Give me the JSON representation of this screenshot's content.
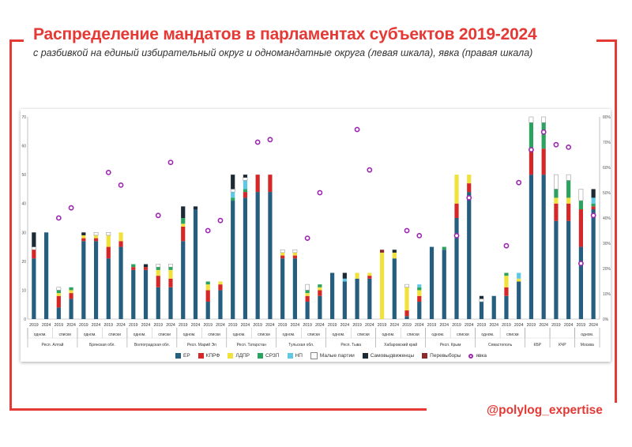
{
  "title": "Распределение мандатов в парламентах субъектов 2019-2024",
  "subtitle": "с разбивкой на единый избирательный округ и одномандатные округа (левая шкала), явка (правая шкала)",
  "handle": "@polylog_expertise",
  "colors": {
    "accent": "#e53935",
    "ЕР": "#255e7e",
    "КПРФ": "#d62728",
    "ЛДПР": "#f0e13c",
    "СРЗП": "#2ca25f",
    "НП": "#5ec8e5",
    "Малые партии": "#ffffff",
    "Самовыдвиженцы": "#1b2a35",
    "Перевыборы": "#8b2a2a",
    "Явка": "#9c27b0"
  },
  "chart_data": {
    "type": "bar",
    "stacked": true,
    "ylim_left": [
      0,
      70
    ],
    "yticks_left": [
      "0",
      "10",
      "20",
      "30",
      "40",
      "50",
      "60",
      "70"
    ],
    "ylim_right": [
      0,
      80
    ],
    "yticks_right": [
      "0%",
      "10%",
      "20%",
      "30%",
      "40%",
      "50%",
      "60%",
      "70%",
      "80%"
    ],
    "series": [
      {
        "name": "ЕР"
      },
      {
        "name": "КПРФ"
      },
      {
        "name": "ЛДПР"
      },
      {
        "name": "СРЗП"
      },
      {
        "name": "НП"
      },
      {
        "name": "Малые партии"
      },
      {
        "name": "Самовыдвиженцы"
      },
      {
        "name": "Перевыборы"
      }
    ],
    "turnout_label": "явка",
    "regions": [
      {
        "name": "Респ. Алтай",
        "groups": [
          {
            "label": "одном.",
            "bars": [
              {
                "year": "2019",
                "stack": [
                  21,
                  3,
                  0,
                  0,
                  0,
                  1,
                  5,
                  0
                ],
                "turnout": null
              },
              {
                "year": "2024",
                "stack": [
                  30,
                  0,
                  0,
                  0,
                  0,
                  0,
                  0,
                  0
                ],
                "turnout": null
              }
            ]
          },
          {
            "label": "списки",
            "bars": [
              {
                "year": "2019",
                "stack": [
                  4,
                  4,
                  1,
                  1,
                  0,
                  1,
                  0,
                  0
                ],
                "turnout": 40
              },
              {
                "year": "2024",
                "stack": [
                  7,
                  2,
                  1,
                  1,
                  0,
                  0,
                  0,
                  0
                ],
                "turnout": 44
              }
            ]
          }
        ]
      },
      {
        "name": "Брянская обл.",
        "groups": [
          {
            "label": "одном.",
            "bars": [
              {
                "year": "2019",
                "stack": [
                  27,
                  1,
                  1,
                  0,
                  0,
                  0,
                  1,
                  0
                ],
                "turnout": null
              },
              {
                "year": "2024",
                "stack": [
                  27,
                  1,
                  1,
                  0,
                  0,
                  1,
                  0,
                  0
                ],
                "turnout": null
              }
            ]
          },
          {
            "label": "списки",
            "bars": [
              {
                "year": "2019",
                "stack": [
                  21,
                  4,
                  4,
                  0,
                  0,
                  1,
                  0,
                  0
                ],
                "turnout": 58
              },
              {
                "year": "2024",
                "stack": [
                  25,
                  2,
                  3,
                  0,
                  0,
                  0,
                  0,
                  0
                ],
                "turnout": 53
              }
            ]
          }
        ]
      },
      {
        "name": "Волгоградская обл.",
        "groups": [
          {
            "label": "одном.",
            "bars": [
              {
                "year": "2019",
                "stack": [
                  17,
                  1,
                  0,
                  1,
                  0,
                  0,
                  0,
                  0
                ],
                "turnout": null
              },
              {
                "year": "2024",
                "stack": [
                  17,
                  1,
                  0,
                  0,
                  0,
                  0,
                  1,
                  0
                ],
                "turnout": null
              }
            ]
          },
          {
            "label": "списки",
            "bars": [
              {
                "year": "2019",
                "stack": [
                  11,
                  4,
                  2,
                  1,
                  0,
                  1,
                  0,
                  0
                ],
                "turnout": 41
              },
              {
                "year": "2024",
                "stack": [
                  11,
                  3,
                  3,
                  1,
                  0,
                  1,
                  0,
                  0
                ],
                "turnout": 62
              }
            ]
          }
        ]
      },
      {
        "name": "Респ. Марий Эл",
        "groups": [
          {
            "label": "одном.",
            "bars": [
              {
                "year": "2019",
                "stack": [
                  27,
                  5,
                  1,
                  2,
                  0,
                  0,
                  4,
                  0
                ],
                "turnout": null
              },
              {
                "year": "2024",
                "stack": [
                  38,
                  0,
                  0,
                  0,
                  0,
                  0,
                  1,
                  0
                ],
                "turnout": null
              }
            ]
          },
          {
            "label": "списки",
            "bars": [
              {
                "year": "2019",
                "stack": [
                  6,
                  4,
                  2,
                  1,
                  0,
                  0,
                  0,
                  0
                ],
                "turnout": 35
              },
              {
                "year": "2024",
                "stack": [
                  10,
                  2,
                  1,
                  0,
                  0,
                  0,
                  0,
                  0
                ],
                "turnout": 39
              }
            ]
          }
        ]
      },
      {
        "name": "Респ. Татарстан",
        "groups": [
          {
            "label": "одном.",
            "bars": [
              {
                "year": "2019",
                "stack": [
                  41,
                  0,
                  0,
                  1,
                  2,
                  1,
                  5,
                  0
                ],
                "turnout": null
              },
              {
                "year": "2024",
                "stack": [
                  42,
                  2,
                  0,
                  1,
                  3,
                  1,
                  1,
                  0
                ],
                "turnout": null
              }
            ]
          },
          {
            "label": "списки",
            "bars": [
              {
                "year": "2019",
                "stack": [
                  44,
                  6,
                  0,
                  0,
                  0,
                  0,
                  0,
                  0
                ],
                "turnout": 70
              },
              {
                "year": "2024",
                "stack": [
                  44,
                  6,
                  0,
                  0,
                  0,
                  0,
                  0,
                  0
                ],
                "turnout": 71
              }
            ]
          }
        ]
      },
      {
        "name": "Тульская обл.",
        "groups": [
          {
            "label": "одном.",
            "bars": [
              {
                "year": "2019",
                "stack": [
                  21,
                  1,
                  1,
                  0,
                  0,
                  1,
                  0,
                  0
                ],
                "turnout": null
              },
              {
                "year": "2024",
                "stack": [
                  21,
                  1,
                  1,
                  0,
                  0,
                  1,
                  0,
                  0
                ],
                "turnout": null
              }
            ]
          },
          {
            "label": "списки",
            "bars": [
              {
                "year": "2019",
                "stack": [
                  6,
                  2,
                  1,
                  1,
                  0,
                  2,
                  0,
                  0
                ],
                "turnout": 32
              },
              {
                "year": "2024",
                "stack": [
                  8,
                  2,
                  1,
                  1,
                  0,
                  0,
                  0,
                  0
                ],
                "turnout": 50
              }
            ]
          }
        ]
      },
      {
        "name": "Респ. Тыва",
        "groups": [
          {
            "label": "одном.",
            "bars": [
              {
                "year": "2019",
                "stack": [
                  16,
                  0,
                  0,
                  0,
                  0,
                  0,
                  0,
                  0
                ],
                "turnout": null
              },
              {
                "year": "2024",
                "stack": [
                  13,
                  0,
                  0,
                  0,
                  1,
                  0,
                  2,
                  0
                ],
                "turnout": null
              }
            ]
          },
          {
            "label": "списки",
            "bars": [
              {
                "year": "2019",
                "stack": [
                  14,
                  0,
                  2,
                  0,
                  0,
                  0,
                  0,
                  0
                ],
                "turnout": 75
              },
              {
                "year": "2024",
                "stack": [
                  14,
                  1,
                  1,
                  0,
                  0,
                  0,
                  0,
                  0
                ],
                "turnout": 59
              }
            ]
          }
        ]
      },
      {
        "name": "Хабаровский край",
        "groups": [
          {
            "label": "одном.",
            "bars": [
              {
                "year": "2019",
                "stack": [
                  0,
                  0,
                  23,
                  0,
                  0,
                  0,
                  0,
                  1
                ],
                "turnout": null
              },
              {
                "year": "2024",
                "stack": [
                  21,
                  0,
                  2,
                  0,
                  0,
                  0,
                  1,
                  0
                ],
                "turnout": null
              }
            ]
          },
          {
            "label": "списки",
            "bars": [
              {
                "year": "2019",
                "stack": [
                  1,
                  2,
                  8,
                  0,
                  0,
                  1,
                  0,
                  0
                ],
                "turnout": 35
              },
              {
                "year": "2024",
                "stack": [
                  6,
                  2,
                  2,
                  1,
                  1,
                  0,
                  0,
                  0
                ],
                "turnout": 33
              }
            ]
          }
        ]
      },
      {
        "name": "Респ. Крым",
        "groups": [
          {
            "label": "одном.",
            "bars": [
              {
                "year": "2019",
                "stack": [
                  25,
                  0,
                  0,
                  0,
                  0,
                  0,
                  0,
                  0
                ],
                "turnout": null
              },
              {
                "year": "2024",
                "stack": [
                  24,
                  0,
                  0,
                  1,
                  0,
                  0,
                  0,
                  0
                ],
                "turnout": null
              }
            ]
          },
          {
            "label": "списки",
            "bars": [
              {
                "year": "2019",
                "stack": [
                  35,
                  5,
                  10,
                  0,
                  0,
                  0,
                  0,
                  0
                ],
                "turnout": 33
              },
              {
                "year": "2024",
                "stack": [
                  44,
                  3,
                  3,
                  0,
                  0,
                  0,
                  0,
                  0
                ],
                "turnout": 48
              }
            ]
          }
        ]
      },
      {
        "name": "Севастополь",
        "groups": [
          {
            "label": "одном.",
            "bars": [
              {
                "year": "2019",
                "stack": [
                  6,
                  0,
                  0,
                  0,
                  0,
                  1,
                  1,
                  0
                ],
                "turnout": null
              },
              {
                "year": "2024",
                "stack": [
                  8,
                  0,
                  0,
                  0,
                  0,
                  0,
                  0,
                  0
                ],
                "turnout": null
              }
            ]
          },
          {
            "label": "списки",
            "bars": [
              {
                "year": "2019",
                "stack": [
                  8,
                  3,
                  4,
                  1,
                  0,
                  0,
                  0,
                  0
                ],
                "turnout": 29
              },
              {
                "year": "2024",
                "stack": [
                  13,
                  0,
                  1,
                  0,
                  2,
                  0,
                  0,
                  0
                ],
                "turnout": 54
              }
            ]
          }
        ]
      },
      {
        "name": "КБР",
        "groups": [
          {
            "label": "",
            "bars": [
              {
                "year": "2019",
                "stack": [
                  50,
                  9,
                  0,
                  9,
                  0,
                  2,
                  0,
                  0
                ],
                "turnout": 67
              },
              {
                "year": "2024",
                "stack": [
                  50,
                  9,
                  0,
                  9,
                  0,
                  2,
                  0,
                  0
                ],
                "turnout": 74
              }
            ]
          }
        ]
      },
      {
        "name": "КЧР",
        "groups": [
          {
            "label": "",
            "bars": [
              {
                "year": "2019",
                "stack": [
                  34,
                  6,
                  2,
                  3,
                  0,
                  5,
                  0,
                  0
                ],
                "turnout": 69
              },
              {
                "year": "2024",
                "stack": [
                  34,
                  6,
                  2,
                  6,
                  0,
                  2,
                  0,
                  0
                ],
                "turnout": 68
              }
            ]
          }
        ]
      },
      {
        "name": "Москва",
        "groups": [
          {
            "label": "одном.",
            "bars": [
              {
                "year": "2019",
                "stack": [
                  25,
                  13,
                  0,
                  3,
                  0,
                  4,
                  0,
                  0
                ],
                "turnout": 22
              },
              {
                "year": "2024",
                "stack": [
                  38,
                  1,
                  0,
                  1,
                  2,
                  0,
                  3,
                  0
                ],
                "turnout": 41
              }
            ]
          }
        ]
      }
    ]
  }
}
